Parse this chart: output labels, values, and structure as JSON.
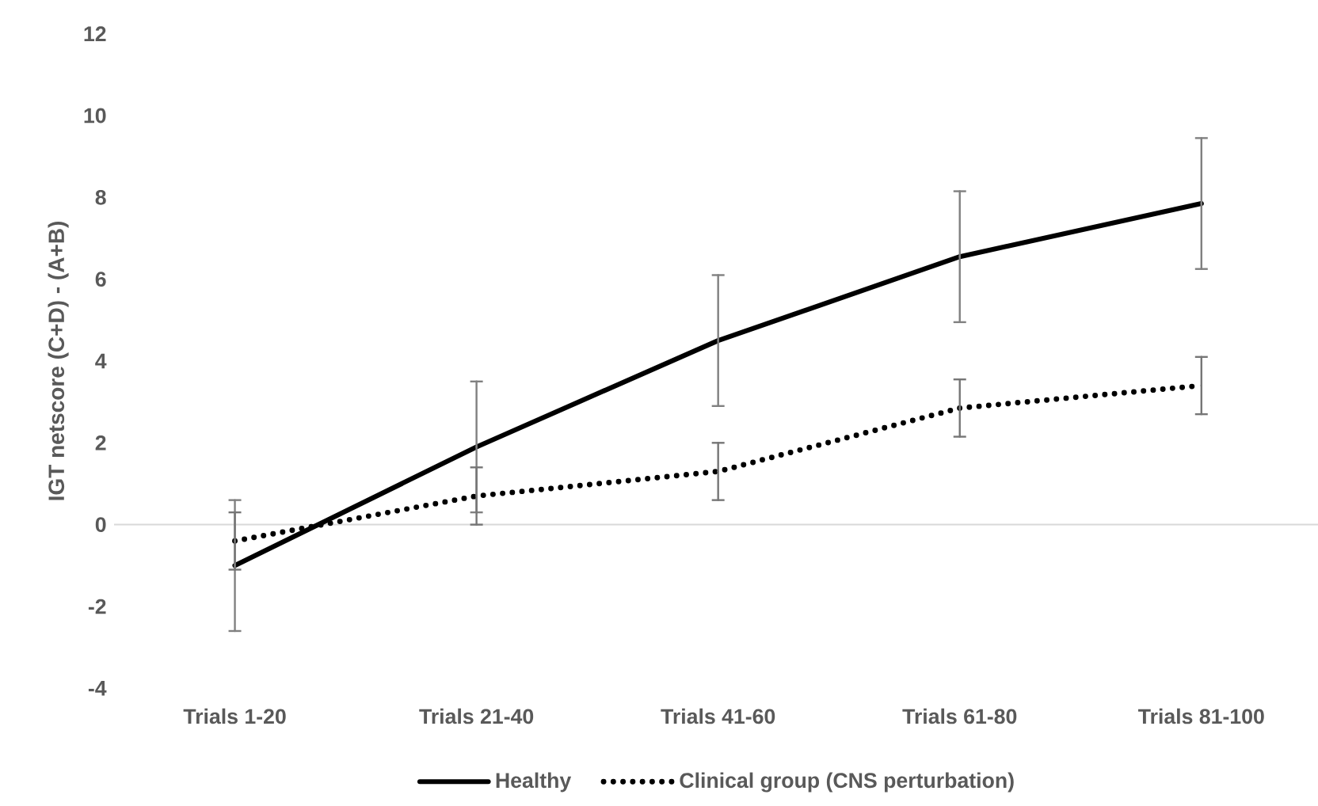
{
  "chart_data": {
    "type": "line",
    "ylabel": "IGT netscore  (C+D) - (A+B)",
    "categories": [
      "Trials 1-20",
      "Trials 21-40",
      "Trials 41-60",
      "Trials 61-80",
      "Trials 81-100"
    ],
    "series": [
      {
        "name": "Healthy",
        "color": "#000000",
        "line_style": "solid",
        "values": [
          -1.0,
          1.9,
          4.5,
          6.55,
          7.85
        ],
        "errors": [
          1.6,
          1.6,
          1.6,
          1.6,
          1.6
        ]
      },
      {
        "name": "Clinical group (CNS perturbation)",
        "color": "#000000",
        "line_style": "dotted",
        "values": [
          -0.4,
          0.7,
          1.3,
          2.85,
          3.4
        ],
        "errors": [
          0.7,
          0.7,
          0.7,
          0.7,
          0.7
        ]
      }
    ],
    "ylim": [
      -4,
      12
    ],
    "yticks": [
      -4,
      -2,
      0,
      2,
      4,
      6,
      8,
      10,
      12
    ],
    "ref_lines": [
      {
        "axis": "y",
        "value": 0,
        "color": "#d9d9d9"
      }
    ],
    "legend": "bottom",
    "marker": "none"
  }
}
